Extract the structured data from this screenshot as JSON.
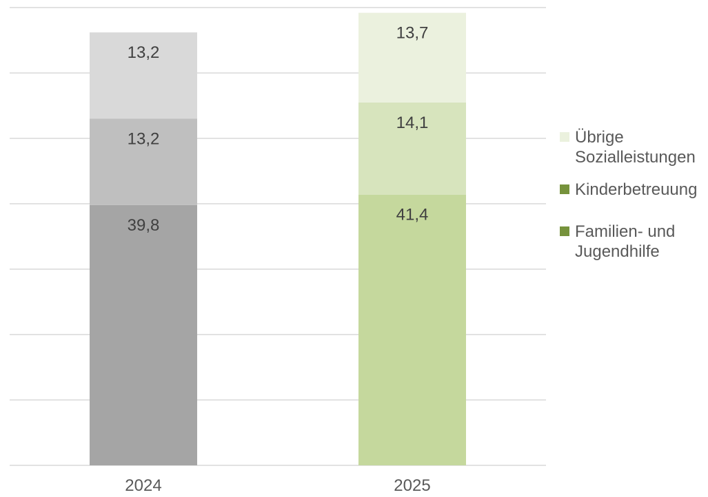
{
  "chart_data": {
    "type": "bar",
    "stacked": true,
    "categories": [
      "2024",
      "2025"
    ],
    "ylim": [
      0,
      70
    ],
    "grid": true,
    "legend_position": "right",
    "series": [
      {
        "name": "Familien- und Jugendhilfe",
        "values": [
          39.8,
          41.4
        ],
        "labels": [
          "39,8",
          "41,4"
        ],
        "colors": [
          "#a5a5a5",
          "#c5d89d"
        ]
      },
      {
        "name": "Kinderbetreuung",
        "values": [
          13.2,
          14.1
        ],
        "labels": [
          "13,2",
          "14,1"
        ],
        "colors": [
          "#bfbfbf",
          "#d7e4bd"
        ]
      },
      {
        "name": "Übrige Sozialleistungen",
        "values": [
          13.2,
          13.7
        ],
        "labels": [
          "13,2",
          "13,7"
        ],
        "colors": [
          "#d9d9d9",
          "#ebf1de"
        ]
      }
    ],
    "legend": [
      {
        "label_lines": [
          "Übrige",
          "Sozialleistungen"
        ],
        "color": "#ebf1de"
      },
      {
        "label_lines": [
          "Kinderbetreuung"
        ],
        "color": "#76923c"
      },
      {
        "label_lines": [
          "Familien- und",
          "Jugendhilfe"
        ],
        "color": "#76923c"
      }
    ]
  }
}
